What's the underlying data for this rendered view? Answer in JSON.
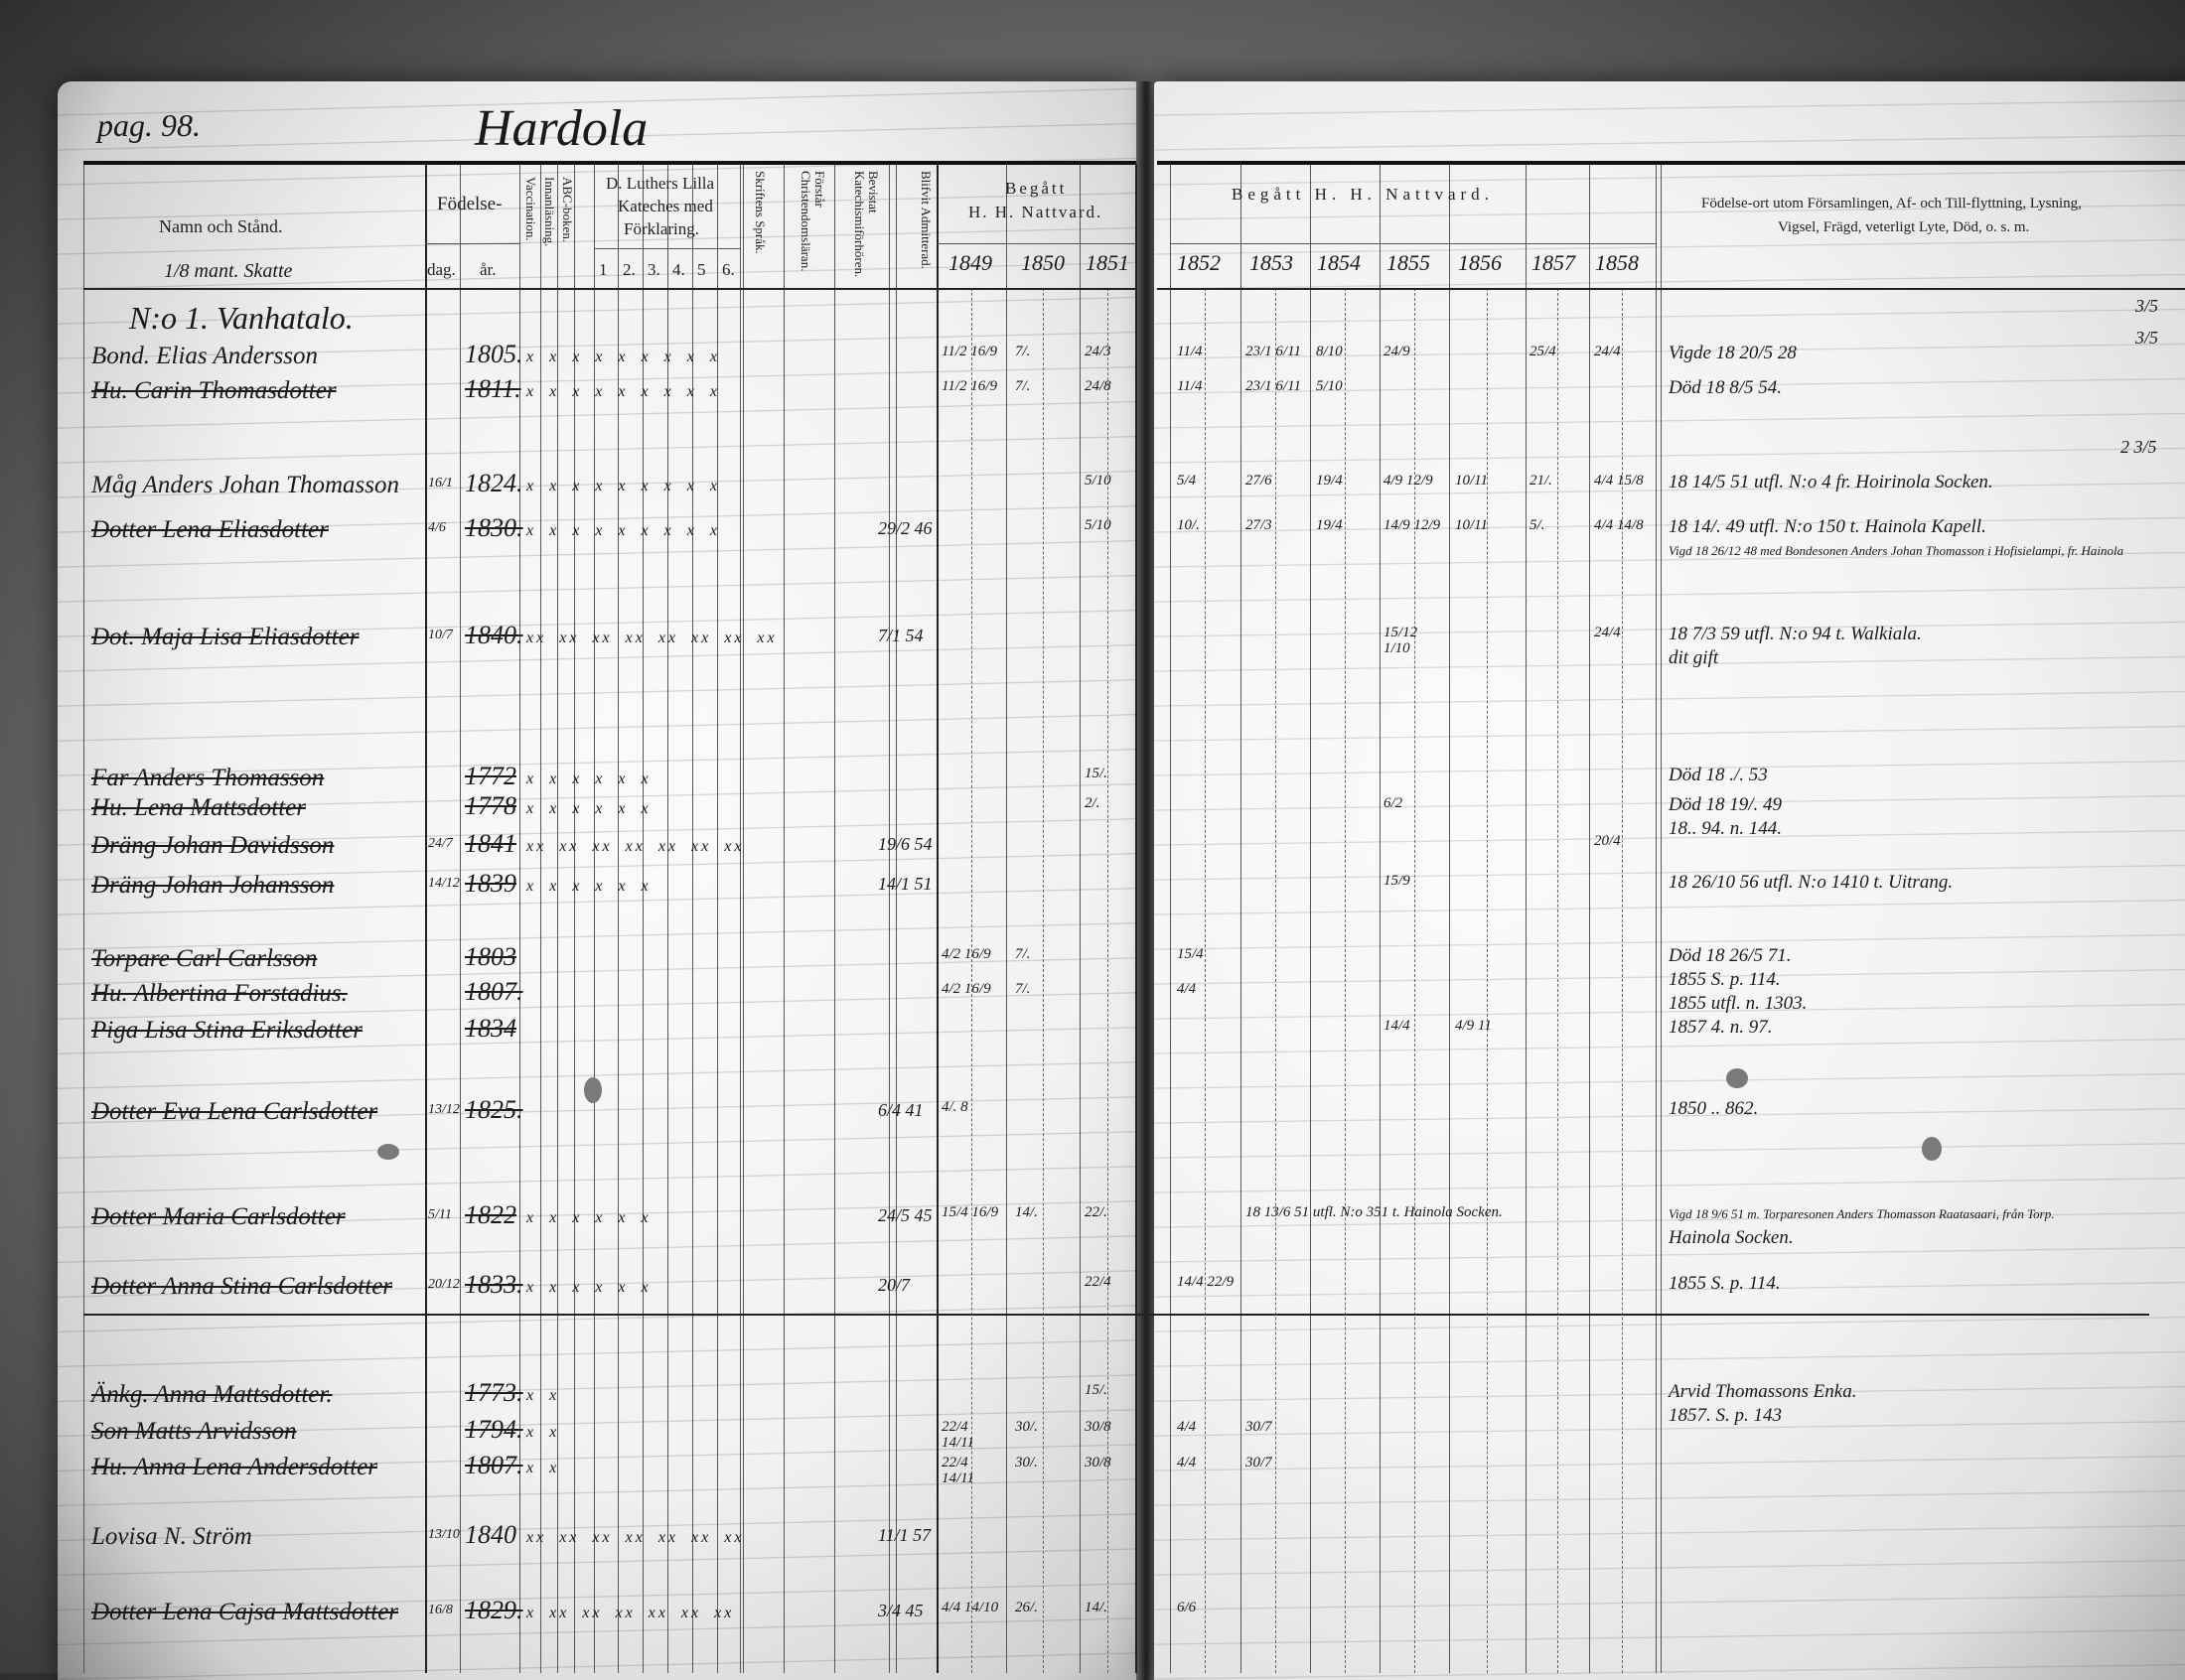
{
  "page_label": "pag. 98.",
  "village": "Hardola",
  "header": {
    "name_col": "Namn och Stånd.",
    "tax": "1/8 mant. Skatte",
    "birth": "Födelse-",
    "birth_day": "dag.",
    "birth_year": "år.",
    "vaccination": "Vaccination.",
    "reading": "Innanläsning.",
    "abc": "ABC-boken.",
    "luther": [
      "D. Luthers Lilla",
      "Kateches med",
      "Förklaring."
    ],
    "luther_parts": [
      "1",
      "2.",
      "3.",
      "4.",
      "5",
      "6."
    ],
    "scripture": "Skriftens Språk.",
    "understands": "Förstår Christendomsläran.",
    "catechism": "Bevistat Katechismiförhören.",
    "admitted": "Blifvit Admitterad.",
    "communion_left": [
      "Begått",
      "H. H. Nattvard."
    ],
    "communion_right": "Begått H. H. Nattvard.",
    "years_left": [
      "1849",
      "1850",
      "1851"
    ],
    "years_right": [
      "1852",
      "1853",
      "1854",
      "1855",
      "1856",
      "1857",
      "1858"
    ],
    "remarks": [
      "Födelse-ort utom Församlingen, Af- och Till-flyttning, Lysning,",
      "Vigsel, Frägd, veterligt Lyte, Död, o. s. m."
    ]
  },
  "rows": [
    {
      "name": "N:o 1. Vanhatalo.",
      "heading": true,
      "day": "",
      "year": "",
      "struck": false,
      "marks": "",
      "admitted": "",
      "communion": {},
      "remarks": []
    },
    {
      "name": "Bond. Elias Andersson",
      "day": "",
      "year": "1805.",
      "struck": false,
      "marks": "x x x x x x x x x",
      "admitted": "",
      "communion": {
        "1849": "11/2 16/9",
        "1850": "7/.",
        "1851": "24/3",
        "1852": "11/4",
        "1853": "23/1 6/11",
        "1854": "8/10",
        "1855": "24/9",
        "1857": "25/4",
        "1858": "24/4"
      },
      "remarks": [
        "Vigde 18 20/5 28"
      ]
    },
    {
      "name": "Hu. Carin Thomasdotter",
      "day": "",
      "year": "1811.",
      "struck": true,
      "marks": "x x x x x x x x x",
      "admitted": "",
      "communion": {
        "1849": "11/2 16/9",
        "1850": "7/.",
        "1851": "24/8",
        "1852": "11/4",
        "1853": "23/1 6/11",
        "1854": "5/10"
      },
      "remarks": [
        "Död 18 8/5 54."
      ]
    },
    {
      "name": "Måg Anders Johan Thomasson",
      "day": "16/1",
      "year": "1824.",
      "struck": false,
      "marks": "x x x x x x x x x",
      "admitted": "",
      "communion": {
        "1851": "5/10",
        "1852": "5/4",
        "1853": "27/6",
        "1854": "19/4",
        "1855": "4/9 12/9",
        "1856": "10/11",
        "1857": "21/.",
        "1858": "4/4 15/8"
      },
      "remarks": [
        "18 14/5 51 utfl. N:o 4 fr. Hoirinola Socken."
      ]
    },
    {
      "name": "Dotter Lena Eliasdotter",
      "day": "4/6",
      "year": "1830.",
      "struck": true,
      "marks": "x x x x x x x x x",
      "admitted": "29/2 46",
      "communion": {
        "1851": "5/10",
        "1852": "10/.",
        "1853": "27/3",
        "1854": "19/4",
        "1855": "14/9 12/9",
        "1856": "10/11",
        "1857": "5/.",
        "1858": "4/4 14/8"
      },
      "remarks": [
        "18 14/. 49 utfl. N:o 150 t. Hainola Kapell.",
        "Vigd 18 26/12 48 med Bondesonen Anders Johan Thomasson i Hofisielampi, fr. Hainola"
      ]
    },
    {
      "name": "Dot. Maja Lisa Eliasdotter",
      "day": "10/7",
      "year": "1840.",
      "struck": true,
      "marks": "xx xx xx xx xx xx xx xx",
      "admitted": "7/1 54",
      "communion": {
        "1855": "15/12 1/10",
        "1858": "24/4"
      },
      "remarks": [
        "18 7/3 59 utfl. N:o 94 t. Walkiala.",
        "dit gift"
      ]
    },
    {
      "name": "Far Anders Thomasson",
      "day": "",
      "year": "1772",
      "struck": true,
      "marks": "x x x x x x",
      "admitted": "",
      "communion": {
        "1851": "15/."
      },
      "remarks": [
        "Död 18 ./. 53"
      ]
    },
    {
      "name": "Hu. Lena Mattsdotter",
      "day": "",
      "year": "1778",
      "struck": true,
      "marks": "x x x x x x",
      "admitted": "",
      "communion": {
        "1851": "2/.",
        "1855": "6/2"
      },
      "remarks": [
        "Död 18 19/. 49",
        "18.. 94. n. 144."
      ]
    },
    {
      "name": "Dräng Johan Davidsson",
      "day": "24/7",
      "year": "1841",
      "struck": true,
      "marks": "xx xx xx xx xx xx xx",
      "admitted": "19/6 54",
      "communion": {
        "1858": "20/4"
      },
      "remarks": []
    },
    {
      "name": "Dräng Johan Johansson",
      "day": "14/12",
      "year": "1839",
      "struck": true,
      "marks": "x x x x x x",
      "admitted": "14/1 51",
      "communion": {
        "1855": "15/9"
      },
      "remarks": [
        "18 26/10 56 utfl. N:o 1410 t. Uitrang."
      ]
    },
    {
      "name": "Torpare Carl Carlsson",
      "day": "",
      "year": "1803",
      "struck": true,
      "marks": "",
      "admitted": "",
      "communion": {
        "1849": "4/2 16/9",
        "1850": "7/.",
        "1852": "15/4"
      },
      "remarks": [
        "Död 18 26/5 71.",
        "1855 S. p. 114."
      ]
    },
    {
      "name": "Hu. Albertina Forstadius.",
      "day": "",
      "year": "1807.",
      "struck": true,
      "marks": "",
      "admitted": "",
      "communion": {
        "1849": "4/2 16/9",
        "1850": "7/.",
        "1852": "4/4"
      },
      "remarks": [
        "1855 utfl. n. 1303."
      ]
    },
    {
      "name": "Piga Lisa Stina Eriksdotter",
      "day": "",
      "year": "1834",
      "struck": true,
      "marks": "",
      "admitted": "",
      "communion": {
        "1855": "14/4",
        "1856": "4/9 11"
      },
      "remarks": [
        "1857 4. n. 97."
      ]
    },
    {
      "name": "Dotter Eva Lena Carlsdotter",
      "day": "13/12",
      "year": "1825.",
      "struck": true,
      "marks": "",
      "admitted": "6/4 41",
      "communion": {
        "1849": "4/. 8"
      },
      "remarks": [
        "1850 .. 862."
      ]
    },
    {
      "name": "Dotter Maria Carlsdotter",
      "day": "5/11",
      "year": "1822",
      "struck": true,
      "marks": "x x x x x x",
      "admitted": "24/5 45",
      "communion": {
        "1849": "15/4 16/9",
        "1850": "14/.",
        "1851": "22/.",
        "1853": "18 13/6 51 utfl. N:o 351 t. Hainola Socken."
      },
      "remarks": [
        "Vigd 18 9/6 51 m. Torparesonen Anders Thomasson Raatasaari, från Torp.",
        "Hainola Socken."
      ]
    },
    {
      "name": "Dotter Anna Stina Carlsdotter",
      "day": "20/12",
      "year": "1833.",
      "struck": true,
      "marks": "x x x x x x",
      "admitted": "20/7",
      "communion": {
        "1851": "22/4",
        "1852": "14/4 22/9"
      },
      "remarks": [
        "1855 S. p. 114."
      ]
    },
    {
      "name": "Änkg. Anna Mattsdotter.",
      "day": "",
      "year": "1773.",
      "struck": true,
      "marks": "x x",
      "admitted": "",
      "communion": {
        "1851": "15/."
      },
      "remarks": [
        "Arvid Thomassons Enka.",
        "1857. S. p. 143"
      ]
    },
    {
      "name": "Son Matts Arvidsson",
      "day": "",
      "year": "1794.",
      "struck": true,
      "marks": "x x",
      "admitted": "",
      "communion": {
        "1849": "22/4 14/11",
        "1850": "30/.",
        "1851": "30/8",
        "1852": "4/4",
        "1853": "30/7"
      },
      "remarks": []
    },
    {
      "name": "Hu. Anna Lena Andersdotter",
      "day": "",
      "year": "1807.",
      "struck": true,
      "marks": "x x",
      "admitted": "",
      "communion": {
        "1849": "22/4 14/11",
        "1850": "30/.",
        "1851": "30/8",
        "1852": "4/4",
        "1853": "30/7"
      },
      "remarks": []
    },
    {
      "name": "Lovisa N. Ström",
      "day": "13/10",
      "year": "1840",
      "struck": false,
      "marks": "xx xx xx xx xx xx xx",
      "admitted": "11/1 57",
      "communion": {},
      "remarks": []
    },
    {
      "name": "Dotter Lena Cajsa Mattsdotter",
      "day": "16/8",
      "year": "1829.",
      "struck": true,
      "marks": "x xx xx xx xx xx xx",
      "admitted": "3/4 45",
      "communion": {
        "1849": "4/4 14/10",
        "1850": "26/.",
        "1851": "14/.",
        "1852": "6/6"
      },
      "remarks": []
    }
  ],
  "margin_notes": [
    "3/5",
    "3/5",
    "2 3/5"
  ]
}
